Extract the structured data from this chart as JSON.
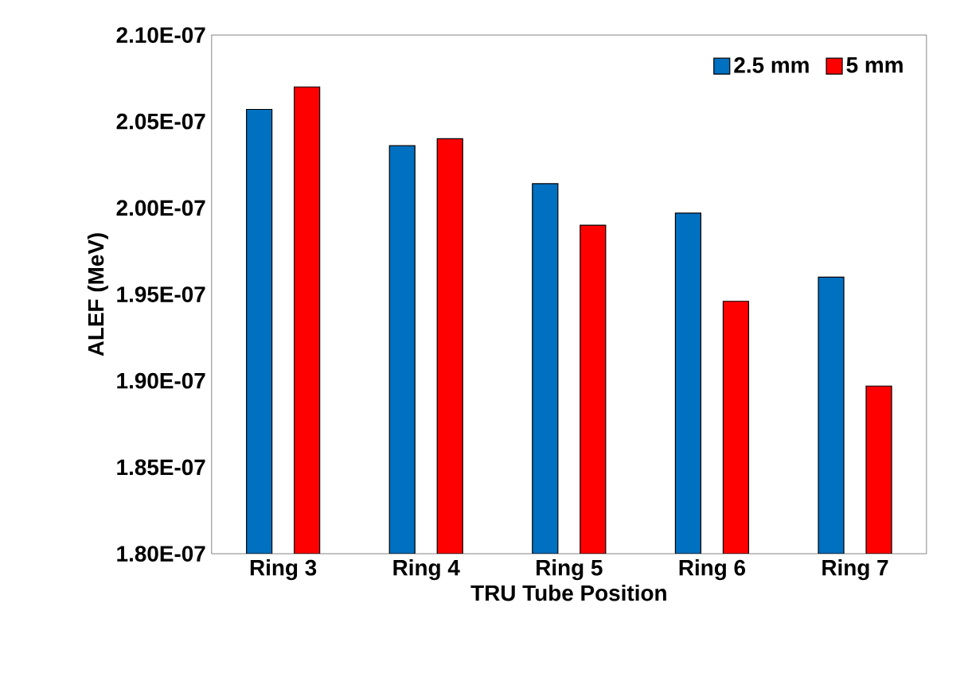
{
  "chart_data": {
    "type": "bar",
    "xlabel": "TRU Tube Position",
    "ylabel": "ALEF (MeV)",
    "categories": [
      "Ring 3",
      "Ring 4",
      "Ring 5",
      "Ring 6",
      "Ring 7"
    ],
    "series": [
      {
        "name": "2.5 mm",
        "color": "#0070c0",
        "values": [
          2.057e-07,
          2.036e-07,
          2.014e-07,
          1.997e-07,
          1.96e-07
        ]
      },
      {
        "name": "5 mm",
        "color": "#ff0000",
        "values": [
          2.07e-07,
          2.04e-07,
          1.99e-07,
          1.946e-07,
          1.897e-07
        ]
      }
    ],
    "ylim": [
      1.8e-07,
      2.1e-07
    ],
    "yticks": [
      {
        "value": 1.8e-07,
        "label": "1.80E-07"
      },
      {
        "value": 1.85e-07,
        "label": "1.85E-07"
      },
      {
        "value": 1.9e-07,
        "label": "1.90E-07"
      },
      {
        "value": 1.95e-07,
        "label": "1.95E-07"
      },
      {
        "value": 2e-07,
        "label": "2.00E-07"
      },
      {
        "value": 2.05e-07,
        "label": "2.05E-07"
      },
      {
        "value": 2.1e-07,
        "label": "2.10E-07"
      }
    ],
    "grid": false,
    "legend": "top right"
  }
}
